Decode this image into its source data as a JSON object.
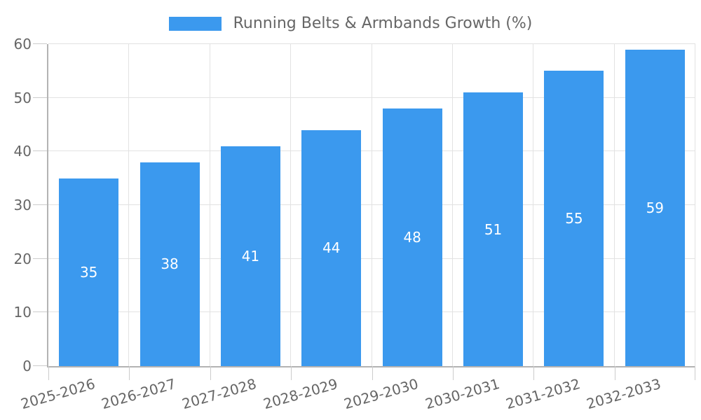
{
  "legend": {
    "label": "Running Belts & Armbands Growth (%)"
  },
  "chart_data": {
    "type": "bar",
    "title": "Running Belts & Armbands Growth (%)",
    "categories": [
      "2025-2026",
      "2026-2027",
      "2027-2028",
      "2028-2029",
      "2029-2030",
      "2030-2031",
      "2031-2032",
      "2032-2033"
    ],
    "values": [
      35,
      38,
      41,
      44,
      48,
      51,
      55,
      59
    ],
    "xlabel": "",
    "ylabel": "",
    "ylim": [
      0,
      60
    ],
    "ytick_step": 10,
    "yticks": [
      0,
      10,
      20,
      30,
      40,
      50,
      60
    ],
    "grid": true,
    "legend_position": "top-center",
    "value_labels": "inside-center",
    "xtick_rotation_deg": -16,
    "colors": {
      "bar": "#3B99EE",
      "value_label": "#FFFFFF",
      "tick_text": "#666666",
      "gridline": "#E2E2E2",
      "axis_line": "#B3B3B3",
      "tick_mark": "#CCCCCC"
    }
  }
}
